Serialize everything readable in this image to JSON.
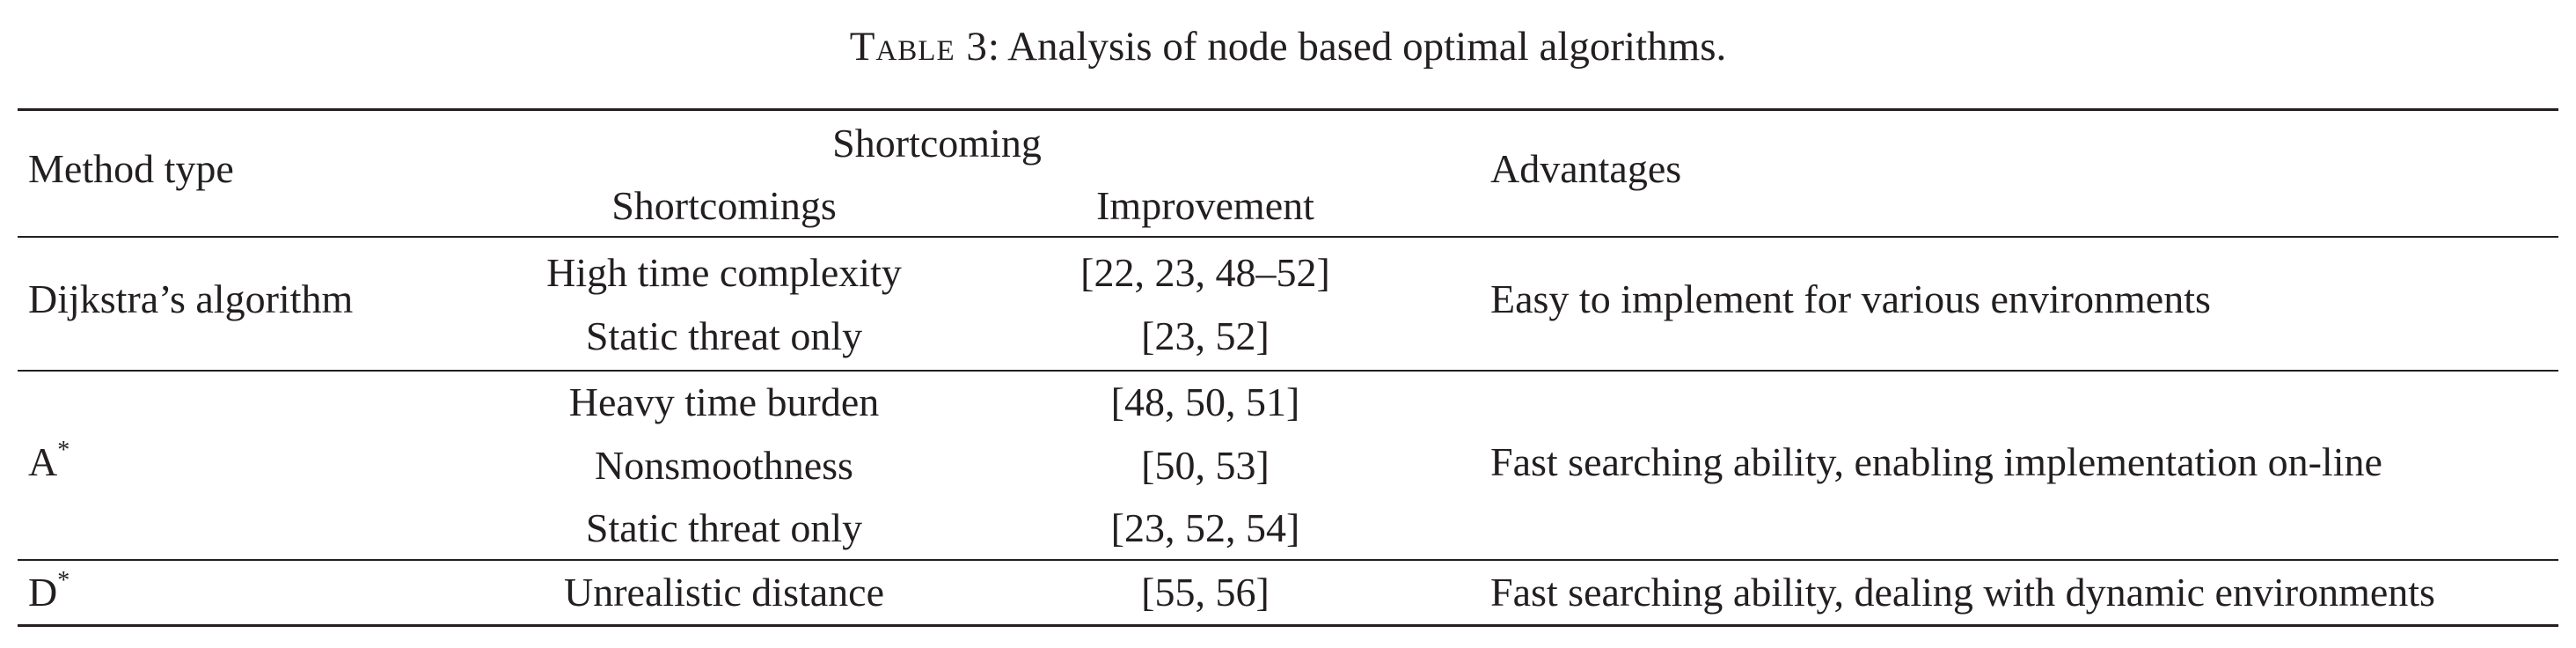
{
  "caption": {
    "label": "Table 3",
    "text": ": Analysis of node based optimal algorithms."
  },
  "header": {
    "method_type": "Method type",
    "shortcoming_group": "Shortcoming",
    "shortcomings": "Shortcomings",
    "improvement": "Improvement",
    "advantages": "Advantages"
  },
  "rows": [
    {
      "method": "Dijkstra’s algorithm",
      "method_sup": "",
      "items": [
        {
          "shortcoming": "High time complexity",
          "improvement": "[22, 23, 48–52]"
        },
        {
          "shortcoming": "Static threat only",
          "improvement": "[23, 52]"
        }
      ],
      "advantage": "Easy to implement for various environments"
    },
    {
      "method": "A",
      "method_sup": "*",
      "items": [
        {
          "shortcoming": "Heavy time burden",
          "improvement": "[48, 50, 51]"
        },
        {
          "shortcoming": "Nonsmoothness",
          "improvement": "[50, 53]"
        },
        {
          "shortcoming": "Static threat only",
          "improvement": "[23, 52, 54]"
        }
      ],
      "advantage": "Fast searching ability, enabling implementation on-line"
    },
    {
      "method": "D",
      "method_sup": "*",
      "items": [
        {
          "shortcoming": "Unrealistic distance",
          "improvement": "[55, 56]"
        }
      ],
      "advantage": "Fast searching ability, dealing with dynamic environments"
    }
  ]
}
